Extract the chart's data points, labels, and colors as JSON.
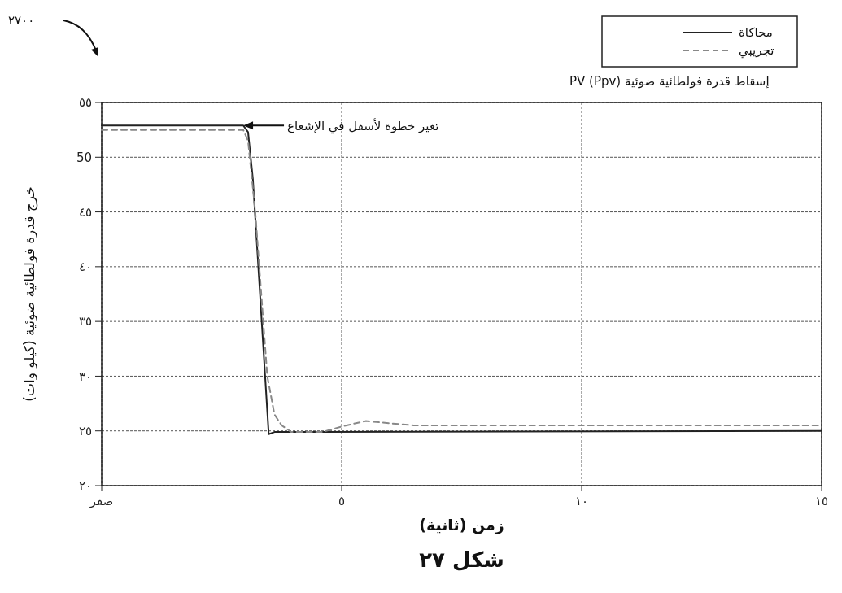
{
  "chart_data": {
    "type": "line",
    "title": "إسقاط قدرة فولطائية ضوئية PV (Ppv)",
    "xlabel": "زمن (ثانية)",
    "ylabel": "خرج قدرة فولطائية ضوئية (كيلو وات)",
    "xlim": [
      0,
      15
    ],
    "xticks": [
      {
        "value": 0,
        "label": "صفر"
      },
      {
        "value": 5,
        "label": "٥"
      },
      {
        "value": 10,
        "label": "١٠"
      },
      {
        "value": 15,
        "label": "١٥"
      }
    ],
    "ylim": [
      20,
      55
    ],
    "yticks": [
      {
        "value": 20,
        "label": "٢٠"
      },
      {
        "value": 25,
        "label": "٢٥"
      },
      {
        "value": 30,
        "label": "٣٠"
      },
      {
        "value": 35,
        "label": "٣٥"
      },
      {
        "value": 40,
        "label": "٤٠"
      },
      {
        "value": 45,
        "label": "٤٥"
      },
      50,
      {
        "value": 55,
        "label": "٥٥"
      }
    ],
    "grid": true,
    "legend": "top right",
    "series": [
      {
        "name": "محاكاة",
        "color": "#222222",
        "line_style": "solid",
        "x": [
          0,
          2.95,
          3.05,
          3.15,
          3.48,
          3.6,
          4.5,
          15
        ],
        "values": [
          52.9,
          52.9,
          52.3,
          48,
          24.7,
          24.9,
          24.9,
          25.0
        ]
      },
      {
        "name": "تجريبي",
        "color": "#888888",
        "line_style": "dashed",
        "x": [
          0,
          2.95,
          3.05,
          3.2,
          3.45,
          3.6,
          3.75,
          3.95,
          4.6,
          5,
          5.5,
          6,
          6.5,
          15
        ],
        "values": [
          52.5,
          52.5,
          51.5,
          45,
          30,
          26.5,
          25.5,
          24.9,
          24.9,
          25.4,
          25.9,
          25.7,
          25.5,
          25.5
        ]
      }
    ],
    "annotations": [
      "تغير خطوة لأسفل في الإشعاع",
      "٢٧٠٠",
      "شكل ٢٧"
    ]
  }
}
